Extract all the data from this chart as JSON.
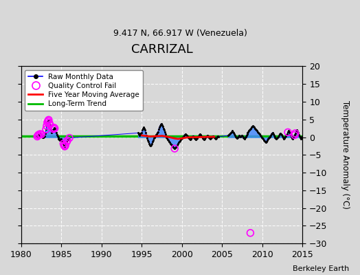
{
  "title": "CARRIZAL",
  "subtitle": "9.417 N, 66.917 W (Venezuela)",
  "ylabel_right": "Temperature Anomaly (°C)",
  "watermark": "Berkeley Earth",
  "xlim": [
    1980,
    2015
  ],
  "ylim": [
    -30,
    20
  ],
  "yticks": [
    -30,
    -25,
    -20,
    -15,
    -10,
    -5,
    0,
    5,
    10,
    15,
    20
  ],
  "xticks": [
    1980,
    1985,
    1990,
    1995,
    2000,
    2005,
    2010,
    2015
  ],
  "bg_color": "#d8d8d8",
  "grid_color": "#ffffff",
  "raw_line_color": "#0000ff",
  "dot_color": "#000000",
  "stem_color": "#4488ff",
  "qc_color": "#ff00ff",
  "moving_avg_color": "#ff0000",
  "trend_color": "#00bb00",
  "raw_monthly_data": [
    [
      1982.0,
      0.2
    ],
    [
      1982.083,
      0.5
    ],
    [
      1982.167,
      0.7
    ],
    [
      1982.25,
      0.4
    ],
    [
      1982.333,
      0.9
    ],
    [
      1982.417,
      1.1
    ],
    [
      1982.5,
      0.8
    ],
    [
      1982.583,
      0.3
    ],
    [
      1982.667,
      0.0
    ],
    [
      1982.75,
      -0.1
    ],
    [
      1982.833,
      0.2
    ],
    [
      1982.917,
      0.4
    ],
    [
      1983.0,
      1.0
    ],
    [
      1983.083,
      2.2
    ],
    [
      1983.167,
      3.2
    ],
    [
      1983.25,
      4.2
    ],
    [
      1983.333,
      4.6
    ],
    [
      1983.417,
      4.9
    ],
    [
      1983.5,
      4.0
    ],
    [
      1983.583,
      3.5
    ],
    [
      1983.667,
      2.2
    ],
    [
      1983.75,
      1.3
    ],
    [
      1983.833,
      1.6
    ],
    [
      1983.917,
      2.0
    ],
    [
      1984.0,
      2.3
    ],
    [
      1984.083,
      2.7
    ],
    [
      1984.167,
      2.5
    ],
    [
      1984.25,
      2.0
    ],
    [
      1984.333,
      1.2
    ],
    [
      1984.417,
      0.6
    ],
    [
      1984.5,
      0.3
    ],
    [
      1984.583,
      0.0
    ],
    [
      1984.667,
      -0.4
    ],
    [
      1984.75,
      -0.7
    ],
    [
      1984.833,
      -0.9
    ],
    [
      1984.917,
      -0.4
    ],
    [
      1985.0,
      -0.4
    ],
    [
      1985.083,
      -1.0
    ],
    [
      1985.167,
      -1.3
    ],
    [
      1985.25,
      -1.8
    ],
    [
      1985.333,
      -2.3
    ],
    [
      1985.417,
      -2.6
    ],
    [
      1985.5,
      -2.3
    ],
    [
      1985.583,
      -1.8
    ],
    [
      1985.667,
      -1.3
    ],
    [
      1985.75,
      -0.9
    ],
    [
      1985.833,
      -0.7
    ],
    [
      1985.917,
      -0.4
    ],
    [
      1986.0,
      -0.2
    ],
    [
      1994.5,
      1.2
    ],
    [
      1994.583,
      0.8
    ],
    [
      1994.667,
      0.5
    ],
    [
      1994.75,
      0.8
    ],
    [
      1994.833,
      1.1
    ],
    [
      1994.917,
      0.7
    ],
    [
      1995.0,
      1.3
    ],
    [
      1995.083,
      2.0
    ],
    [
      1995.167,
      2.5
    ],
    [
      1995.25,
      2.8
    ],
    [
      1995.333,
      2.5
    ],
    [
      1995.417,
      2.0
    ],
    [
      1995.5,
      1.3
    ],
    [
      1995.583,
      0.5
    ],
    [
      1995.667,
      -0.3
    ],
    [
      1995.75,
      -0.8
    ],
    [
      1995.833,
      -1.2
    ],
    [
      1995.917,
      -1.8
    ],
    [
      1996.0,
      -2.2
    ],
    [
      1996.083,
      -2.5
    ],
    [
      1996.167,
      -2.2
    ],
    [
      1996.25,
      -1.8
    ],
    [
      1996.333,
      -1.3
    ],
    [
      1996.417,
      -0.8
    ],
    [
      1996.5,
      -0.3
    ],
    [
      1996.583,
      0.0
    ],
    [
      1996.667,
      0.3
    ],
    [
      1996.75,
      0.6
    ],
    [
      1996.833,
      0.9
    ],
    [
      1996.917,
      1.2
    ],
    [
      1997.0,
      1.5
    ],
    [
      1997.083,
      2.2
    ],
    [
      1997.167,
      2.8
    ],
    [
      1997.25,
      3.2
    ],
    [
      1997.333,
      3.6
    ],
    [
      1997.417,
      3.8
    ],
    [
      1997.5,
      3.5
    ],
    [
      1997.583,
      3.0
    ],
    [
      1997.667,
      2.5
    ],
    [
      1997.75,
      2.0
    ],
    [
      1997.833,
      1.5
    ],
    [
      1997.917,
      0.9
    ],
    [
      1998.0,
      0.3
    ],
    [
      1998.083,
      0.0
    ],
    [
      1998.167,
      -0.3
    ],
    [
      1998.25,
      -0.6
    ],
    [
      1998.333,
      -0.9
    ],
    [
      1998.417,
      -1.2
    ],
    [
      1998.5,
      -1.5
    ],
    [
      1998.583,
      -1.8
    ],
    [
      1998.667,
      -2.0
    ],
    [
      1998.75,
      -2.2
    ],
    [
      1998.833,
      -2.5
    ],
    [
      1998.917,
      -2.7
    ],
    [
      1999.0,
      -3.0
    ],
    [
      1999.083,
      -3.2
    ],
    [
      1999.167,
      -3.0
    ],
    [
      1999.25,
      -2.8
    ],
    [
      1999.333,
      -2.5
    ],
    [
      1999.417,
      -2.2
    ],
    [
      1999.5,
      -1.8
    ],
    [
      1999.583,
      -1.5
    ],
    [
      1999.667,
      -1.2
    ],
    [
      1999.75,
      -1.0
    ],
    [
      1999.833,
      -0.7
    ],
    [
      1999.917,
      -0.5
    ],
    [
      2000.0,
      -0.3
    ],
    [
      2000.083,
      0.0
    ],
    [
      2000.167,
      0.2
    ],
    [
      2000.25,
      0.5
    ],
    [
      2000.333,
      0.7
    ],
    [
      2000.417,
      0.9
    ],
    [
      2000.5,
      0.7
    ],
    [
      2000.583,
      0.5
    ],
    [
      2000.667,
      0.3
    ],
    [
      2000.75,
      0.0
    ],
    [
      2000.833,
      -0.2
    ],
    [
      2000.917,
      -0.4
    ],
    [
      2001.0,
      -0.6
    ],
    [
      2001.083,
      -0.4
    ],
    [
      2001.167,
      -0.1
    ],
    [
      2001.25,
      0.2
    ],
    [
      2001.333,
      0.4
    ],
    [
      2001.417,
      0.2
    ],
    [
      2001.5,
      0.0
    ],
    [
      2001.583,
      -0.2
    ],
    [
      2001.667,
      -0.4
    ],
    [
      2001.75,
      -0.6
    ],
    [
      2001.833,
      -0.4
    ],
    [
      2001.917,
      -0.2
    ],
    [
      2002.0,
      0.1
    ],
    [
      2002.083,
      0.4
    ],
    [
      2002.167,
      0.7
    ],
    [
      2002.25,
      0.9
    ],
    [
      2002.333,
      0.7
    ],
    [
      2002.417,
      0.4
    ],
    [
      2002.5,
      0.1
    ],
    [
      2002.583,
      -0.2
    ],
    [
      2002.667,
      -0.4
    ],
    [
      2002.75,
      -0.6
    ],
    [
      2002.833,
      -0.4
    ],
    [
      2002.917,
      -0.1
    ],
    [
      2003.0,
      0.1
    ],
    [
      2003.083,
      0.3
    ],
    [
      2003.167,
      0.5
    ],
    [
      2003.25,
      0.3
    ],
    [
      2003.333,
      0.0
    ],
    [
      2003.417,
      -0.2
    ],
    [
      2003.5,
      -0.4
    ],
    [
      2003.583,
      -0.2
    ],
    [
      2003.667,
      0.0
    ],
    [
      2003.75,
      0.2
    ],
    [
      2003.833,
      0.4
    ],
    [
      2003.917,
      0.2
    ],
    [
      2004.0,
      0.0
    ],
    [
      2004.083,
      -0.2
    ],
    [
      2004.167,
      -0.4
    ],
    [
      2004.25,
      -0.2
    ],
    [
      2004.333,
      0.1
    ],
    [
      2004.417,
      0.3
    ],
    [
      2004.5,
      0.1
    ],
    [
      2005.75,
      0.5
    ],
    [
      2005.833,
      0.7
    ],
    [
      2005.917,
      0.9
    ],
    [
      2006.0,
      1.0
    ],
    [
      2006.083,
      1.3
    ],
    [
      2006.167,
      1.5
    ],
    [
      2006.25,
      1.8
    ],
    [
      2006.333,
      1.5
    ],
    [
      2006.417,
      1.2
    ],
    [
      2006.5,
      0.8
    ],
    [
      2006.583,
      0.5
    ],
    [
      2006.667,
      0.2
    ],
    [
      2006.75,
      0.0
    ],
    [
      2006.833,
      -0.2
    ],
    [
      2006.917,
      0.0
    ],
    [
      2007.0,
      0.2
    ],
    [
      2007.083,
      0.5
    ],
    [
      2007.167,
      0.3
    ],
    [
      2007.25,
      0.1
    ],
    [
      2007.333,
      0.3
    ],
    [
      2007.417,
      0.5
    ],
    [
      2007.5,
      0.3
    ],
    [
      2007.583,
      0.0
    ],
    [
      2007.667,
      -0.2
    ],
    [
      2007.75,
      -0.4
    ],
    [
      2007.833,
      -0.1
    ],
    [
      2007.917,
      0.2
    ],
    [
      2008.0,
      0.5
    ],
    [
      2008.083,
      0.8
    ],
    [
      2008.167,
      1.2
    ],
    [
      2008.25,
      1.5
    ],
    [
      2008.333,
      1.8
    ],
    [
      2008.417,
      2.0
    ],
    [
      2008.5,
      2.3
    ],
    [
      2008.583,
      2.5
    ],
    [
      2008.667,
      2.8
    ],
    [
      2008.75,
      3.0
    ],
    [
      2008.833,
      3.2
    ],
    [
      2008.917,
      3.0
    ],
    [
      2009.0,
      2.8
    ],
    [
      2009.083,
      2.5
    ],
    [
      2009.167,
      2.2
    ],
    [
      2009.25,
      2.0
    ],
    [
      2009.333,
      1.8
    ],
    [
      2009.417,
      1.5
    ],
    [
      2009.5,
      1.2
    ],
    [
      2009.583,
      1.0
    ],
    [
      2009.667,
      0.8
    ],
    [
      2009.75,
      0.5
    ],
    [
      2009.833,
      0.3
    ],
    [
      2009.917,
      0.0
    ],
    [
      2010.0,
      -0.2
    ],
    [
      2010.083,
      -0.5
    ],
    [
      2010.167,
      -0.8
    ],
    [
      2010.25,
      -1.0
    ],
    [
      2010.333,
      -1.3
    ],
    [
      2010.417,
      -1.5
    ],
    [
      2010.5,
      -1.2
    ],
    [
      2010.583,
      -0.8
    ],
    [
      2010.667,
      -0.5
    ],
    [
      2010.75,
      -0.2
    ],
    [
      2010.833,
      0.0
    ],
    [
      2010.917,
      0.2
    ],
    [
      2011.0,
      0.5
    ],
    [
      2011.083,
      0.8
    ],
    [
      2011.167,
      1.1
    ],
    [
      2011.25,
      1.3
    ],
    [
      2011.333,
      0.9
    ],
    [
      2011.417,
      0.5
    ],
    [
      2011.5,
      0.2
    ],
    [
      2011.583,
      0.0
    ],
    [
      2011.667,
      -0.2
    ],
    [
      2011.75,
      -0.5
    ],
    [
      2011.833,
      -0.3
    ],
    [
      2011.917,
      0.0
    ],
    [
      2012.0,
      0.2
    ],
    [
      2012.083,
      0.5
    ],
    [
      2012.167,
      0.9
    ],
    [
      2012.25,
      1.1
    ],
    [
      2012.333,
      0.9
    ],
    [
      2012.417,
      0.6
    ],
    [
      2012.5,
      0.3
    ],
    [
      2012.583,
      -0.1
    ],
    [
      2012.667,
      -0.4
    ],
    [
      2012.75,
      -0.2
    ],
    [
      2012.833,
      0.1
    ],
    [
      2012.917,
      0.3
    ],
    [
      2013.0,
      0.6
    ],
    [
      2013.083,
      0.9
    ],
    [
      2013.167,
      1.4
    ],
    [
      2013.25,
      1.8
    ],
    [
      2013.333,
      1.5
    ],
    [
      2013.417,
      1.1
    ],
    [
      2013.5,
      0.7
    ],
    [
      2013.583,
      0.2
    ],
    [
      2013.667,
      -0.2
    ],
    [
      2013.75,
      -0.4
    ],
    [
      2013.833,
      -0.1
    ],
    [
      2013.917,
      0.3
    ],
    [
      2014.0,
      0.6
    ],
    [
      2014.083,
      1.1
    ],
    [
      2014.167,
      1.6
    ],
    [
      2014.25,
      2.1
    ],
    [
      2014.333,
      1.7
    ],
    [
      2014.417,
      1.2
    ],
    [
      2014.5,
      0.7
    ],
    [
      2014.583,
      0.3
    ],
    [
      2014.667,
      -0.1
    ],
    [
      2014.75,
      -0.4
    ],
    [
      2014.833,
      -0.1
    ],
    [
      2014.917,
      0.2
    ]
  ],
  "qc_fail_points": [
    [
      1982.0,
      0.2
    ],
    [
      1982.083,
      0.5
    ],
    [
      1982.167,
      0.7
    ],
    [
      1982.333,
      0.9
    ],
    [
      1982.5,
      0.8
    ],
    [
      1983.083,
      2.2
    ],
    [
      1983.167,
      3.2
    ],
    [
      1983.25,
      4.2
    ],
    [
      1983.333,
      4.6
    ],
    [
      1983.417,
      4.9
    ],
    [
      1983.5,
      4.0
    ],
    [
      1983.583,
      3.5
    ],
    [
      1984.0,
      2.3
    ],
    [
      1984.083,
      2.7
    ],
    [
      1984.167,
      2.5
    ],
    [
      1985.25,
      -1.8
    ],
    [
      1985.333,
      -2.3
    ],
    [
      1985.417,
      -2.6
    ],
    [
      1985.5,
      -2.3
    ],
    [
      1985.667,
      -1.3
    ],
    [
      1985.75,
      -0.9
    ],
    [
      1986.0,
      -0.2
    ],
    [
      1999.083,
      -3.2
    ],
    [
      2008.5,
      -27.0
    ],
    [
      2014.0,
      0.6
    ],
    [
      2014.083,
      1.1
    ],
    [
      2013.167,
      1.4
    ]
  ],
  "moving_avg_x": [
    1995.0,
    1996.0,
    1997.0,
    1997.5,
    1998.0,
    1998.5,
    1999.0,
    1999.5,
    2000.0,
    2000.5,
    2001.0,
    2002.0,
    2003.0,
    2004.0
  ],
  "moving_avg_y": [
    0.5,
    0.2,
    0.3,
    0.4,
    0.2,
    0.0,
    -0.3,
    -0.5,
    -0.3,
    -0.1,
    0.0,
    0.0,
    0.1,
    0.1
  ]
}
